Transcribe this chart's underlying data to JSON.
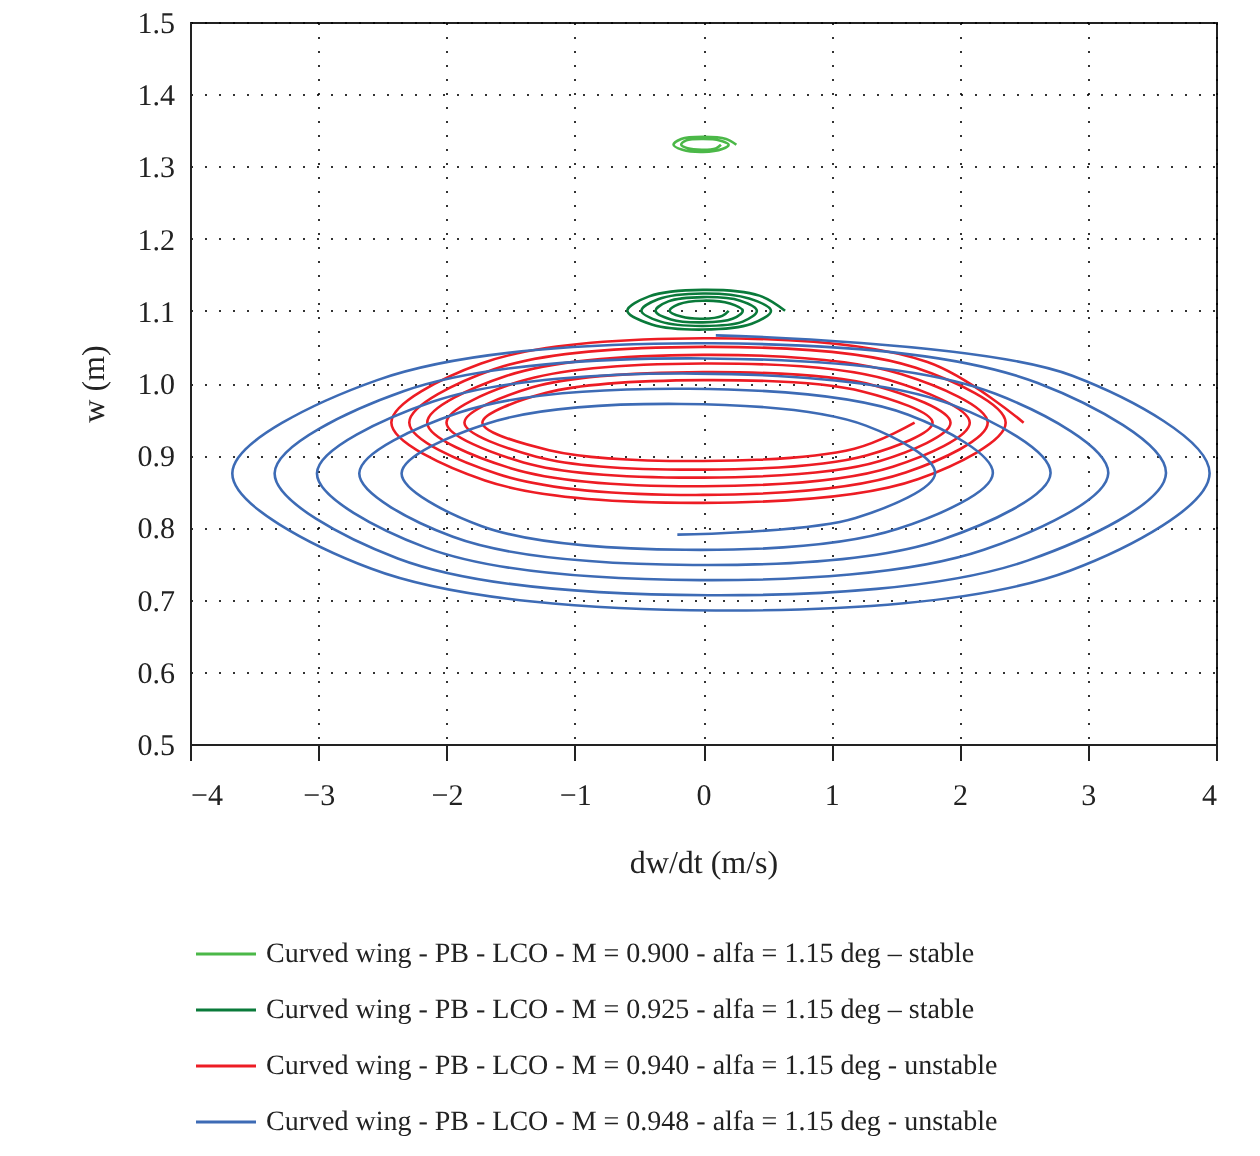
{
  "chart_data": {
    "type": "line",
    "xlabel": "dw/dt (m/s)",
    "ylabel": "w (m)",
    "xlim": [
      -4,
      4
    ],
    "ylim": [
      0.5,
      1.5
    ],
    "xticks": [
      {
        "value": -4,
        "label": "−4"
      },
      {
        "value": -3,
        "label": "−3"
      },
      {
        "value": -2,
        "label": "−2"
      },
      {
        "value": -1,
        "label": "−1"
      },
      0,
      1,
      2,
      3,
      4
    ],
    "yticks": [
      0.5,
      0.6,
      0.7,
      0.8,
      0.9,
      {
        "value": 1,
        "label": "1.0"
      },
      1.1,
      1.2,
      1.3,
      1.4,
      1.5
    ],
    "grid": true,
    "legend": "bottom",
    "series": [
      {
        "name": "Curved wing - PB - LCO - M = 0.900 - alfa = 1.15 deg – stable",
        "color": "#4bb848",
        "x": [
          0.26,
          0.18,
          0,
          -0.17,
          -0.23,
          -0.16,
          0,
          0.15,
          0.2,
          0.13,
          0,
          -0.13,
          -0.17,
          -0.12,
          0,
          0.1,
          0.14
        ],
        "values": [
          1.33,
          1.338,
          1.341,
          1.338,
          1.33,
          1.323,
          1.32,
          1.324,
          1.33,
          1.336,
          1.338,
          1.336,
          1.33,
          1.325,
          1.323,
          1.325,
          1.33
        ]
      },
      {
        "name": "Curved wing - PB - LCO - M = 0.925 - alfa = 1.15 deg – stable",
        "color": "#0a7a3a",
        "x": [
          0.64,
          0.44,
          0,
          -0.42,
          -0.59,
          -0.4,
          0,
          0.38,
          0.53,
          0.36,
          0,
          -0.35,
          -0.48,
          -0.33,
          0,
          0.31,
          0.42,
          0.29,
          0,
          -0.27,
          -0.37,
          -0.25,
          0,
          0.23,
          0.31,
          0.21,
          0,
          -0.19,
          -0.26,
          -0.17,
          0,
          0.15,
          0.2
        ],
        "values": [
          1.1,
          1.121,
          1.129,
          1.12,
          1.1,
          1.081,
          1.074,
          1.082,
          1.1,
          1.117,
          1.124,
          1.116,
          1.1,
          1.085,
          1.079,
          1.085,
          1.1,
          1.114,
          1.119,
          1.113,
          1.1,
          1.088,
          1.084,
          1.089,
          1.1,
          1.11,
          1.114,
          1.109,
          1.1,
          1.092,
          1.089,
          1.093,
          1.1
        ]
      },
      {
        "name": "Curved wing - PB - LCO - M = 0.940 - alfa = 1.15 deg - unstable",
        "color": "#ed1c24",
        "x": [
          2.5,
          1.75,
          0,
          -1.73,
          -2.43,
          -1.7,
          0,
          1.68,
          2.36,
          1.66,
          0,
          -1.63,
          -2.29,
          -1.6,
          0,
          1.58,
          2.22,
          1.55,
          0,
          -1.53,
          -2.15,
          -1.5,
          0,
          1.48,
          2.08,
          1.45,
          0,
          -1.43,
          -2.0,
          -1.4,
          0,
          1.38,
          1.93,
          1.35,
          0,
          -1.33,
          -1.86,
          -1.3,
          0,
          1.28,
          1.79,
          1.25,
          0,
          -1.23,
          -1.72,
          -1.2,
          0,
          1.18,
          1.65
        ],
        "values": [
          0.945,
          1.029,
          1.062,
          1.027,
          0.945,
          0.865,
          0.834,
          0.867,
          0.945,
          1.021,
          1.05,
          1.019,
          0.945,
          0.874,
          0.845,
          0.876,
          0.945,
          1.012,
          1.039,
          1.01,
          0.945,
          0.882,
          0.857,
          0.884,
          0.945,
          1.004,
          1.027,
          1.002,
          0.945,
          0.89,
          0.869,
          0.892,
          0.945,
          0.996,
          1.015,
          0.994,
          0.945,
          0.898,
          0.88,
          0.9,
          0.945,
          0.988,
          1.004,
          0.986,
          0.945,
          0.907,
          0.892,
          0.909,
          0.945
        ]
      },
      {
        "name": "Curved wing - PB - LCO - M = 0.948 - alfa = 1.15 deg - unstable",
        "color": "#3d6bb5",
        "x": [
          -0.2,
          1.19,
          1.81,
          1.27,
          -0.17,
          -1.68,
          -2.35,
          -1.73,
          -0.14,
          1.52,
          2.26,
          1.6,
          -0.11,
          -1.9,
          -2.68,
          -1.95,
          -0.08,
          1.86,
          2.71,
          1.94,
          -0.05,
          -2.11,
          -3.01,
          -2.16,
          -0.02,
          2.19,
          3.16,
          2.28,
          0.01,
          -2.33,
          -3.34,
          -2.38,
          0.04,
          2.53,
          3.61,
          2.61,
          0.07,
          -2.54,
          -3.67,
          -2.59,
          0.1,
          2.86,
          3.95,
          2.88,
          0.1
        ],
        "values": [
          0.79,
          0.813,
          0.875,
          0.941,
          0.971,
          0.944,
          0.875,
          0.802,
          0.769,
          0.798,
          0.875,
          0.956,
          0.992,
          0.959,
          0.875,
          0.787,
          0.748,
          0.783,
          0.875,
          0.97,
          1.013,
          0.974,
          0.875,
          0.772,
          0.727,
          0.769,
          0.875,
          0.985,
          1.034,
          0.989,
          0.875,
          0.757,
          0.706,
          0.754,
          0.875,
          1.0,
          1.055,
          1.004,
          0.875,
          0.743,
          0.685,
          0.74,
          0.875,
          1.01,
          1.066
        ]
      }
    ]
  }
}
